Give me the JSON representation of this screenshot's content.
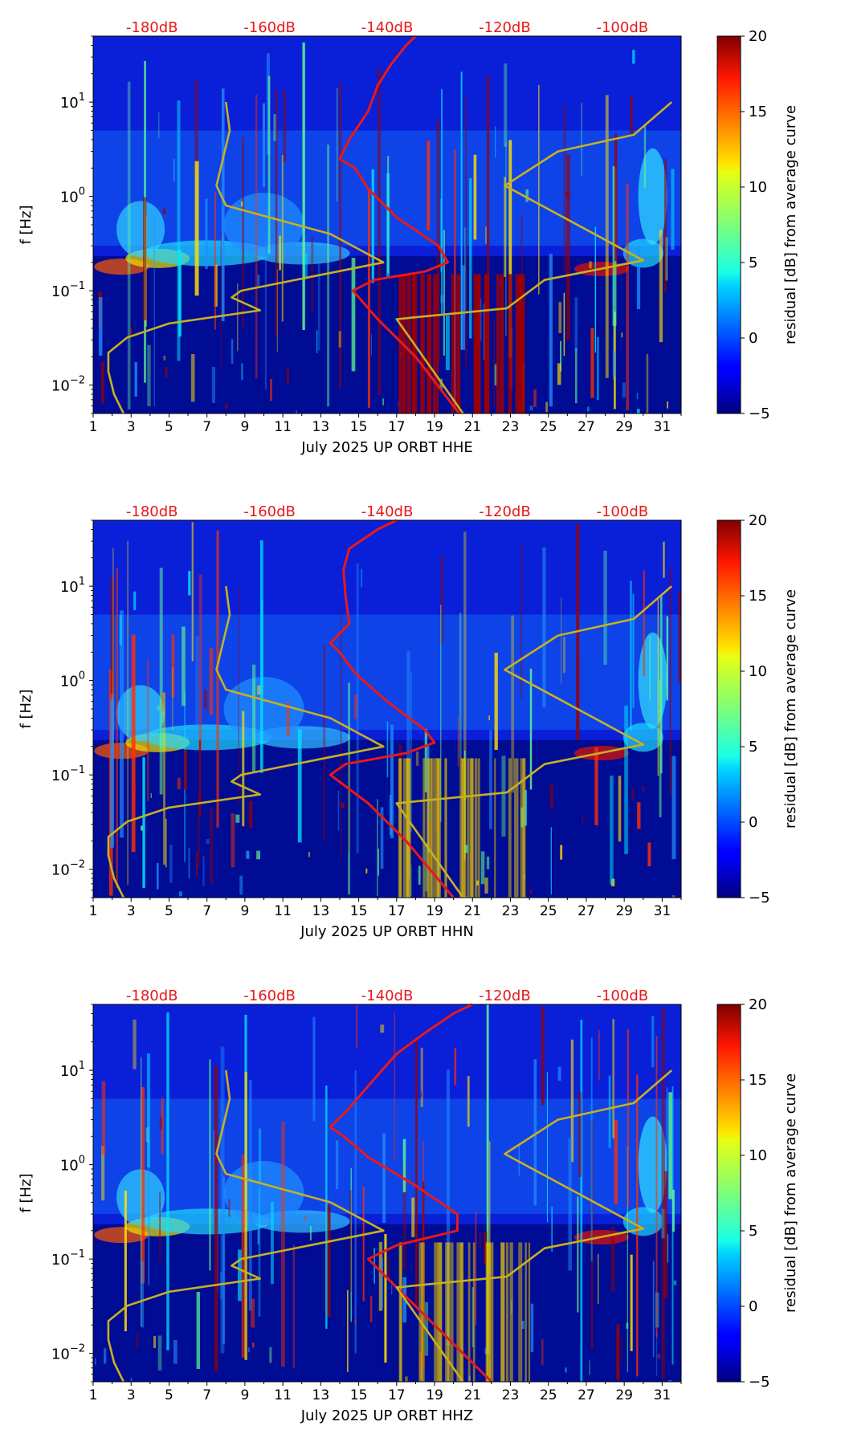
{
  "chart_data": [
    {
      "type": "heatmap",
      "xlabel": "July 2025 UP ORBT  HHE",
      "ylabel": "f [Hz]",
      "x_ticks": [
        "1",
        "3",
        "5",
        "7",
        "9",
        "11",
        "13",
        "15",
        "17",
        "19",
        "21",
        "23",
        "25",
        "27",
        "29",
        "31"
      ],
      "xlim": [
        1,
        32
      ],
      "ylim": [
        0.005,
        50
      ],
      "y_ticks": [
        {
          "value": 0.01,
          "base": "10",
          "exp": "−2"
        },
        {
          "value": 0.1,
          "base": "10",
          "exp": "−1"
        },
        {
          "value": 1,
          "base": "10",
          "exp": "0"
        },
        {
          "value": 10,
          "base": "10",
          "exp": "1"
        }
      ],
      "top_labels": [
        "-180dB",
        "-160dB",
        "-140dB",
        "-120dB",
        "-100dB"
      ],
      "colorbar": {
        "label": "residual [dB] from average curve",
        "range": [
          -5,
          20
        ],
        "ticks": [
          "−5",
          "0",
          "5",
          "10",
          "15",
          "20"
        ]
      },
      "colors": {
        "red_curve": "#e81919",
        "gold_curve": "#c8b020",
        "top_labels": "#e81919"
      },
      "series": [
        {
          "name": "average PSD (red)",
          "points": [
            [
              20.3,
              0.005
            ],
            [
              18,
              0.02
            ],
            [
              16,
              0.05
            ],
            [
              14.7,
              0.1
            ],
            [
              15.8,
              0.13
            ],
            [
              18.5,
              0.16
            ],
            [
              19.7,
              0.2
            ],
            [
              19.2,
              0.3
            ],
            [
              17,
              0.6
            ],
            [
              15.5,
              1.2
            ],
            [
              14.8,
              2
            ],
            [
              14,
              2.5
            ],
            [
              14.5,
              4
            ],
            [
              15.5,
              8
            ],
            [
              16,
              15
            ],
            [
              16.7,
              25
            ],
            [
              17.5,
              40
            ],
            [
              18,
              50
            ]
          ]
        },
        {
          "name": "noise model (gold)",
          "points": [
            [
              2.6,
              0.005
            ],
            [
              2.1,
              0.008
            ],
            [
              1.8,
              0.014
            ],
            [
              1.8,
              0.022
            ],
            [
              2.8,
              0.032
            ],
            [
              5,
              0.045
            ],
            [
              9.8,
              0.062
            ],
            [
              8.3,
              0.085
            ],
            [
              8.8,
              0.1
            ],
            [
              16.3,
              0.2
            ],
            [
              13.5,
              0.4
            ],
            [
              8,
              0.8
            ],
            [
              7.5,
              1.3
            ],
            [
              8.2,
              5
            ],
            [
              8,
              10
            ]
          ]
        },
        {
          "name": "noise model 2 (gold)",
          "points": [
            [
              20.5,
              0.005
            ],
            [
              17,
              0.05
            ],
            [
              22.8,
              0.065
            ],
            [
              24.8,
              0.13
            ],
            [
              30,
              0.21
            ],
            [
              22.7,
              1.3
            ],
            [
              25.5,
              3
            ],
            [
              29.5,
              4.5
            ],
            [
              31.5,
              10
            ]
          ]
        }
      ]
    },
    {
      "type": "heatmap",
      "xlabel": "July 2025 UP ORBT  HHN",
      "ylabel": "f [Hz]",
      "x_ticks": [
        "1",
        "3",
        "5",
        "7",
        "9",
        "11",
        "13",
        "15",
        "17",
        "19",
        "21",
        "23",
        "25",
        "27",
        "29",
        "31"
      ],
      "xlim": [
        1,
        32
      ],
      "ylim": [
        0.005,
        50
      ],
      "y_ticks": [
        {
          "value": 0.01,
          "base": "10",
          "exp": "−2"
        },
        {
          "value": 0.1,
          "base": "10",
          "exp": "−1"
        },
        {
          "value": 1,
          "base": "10",
          "exp": "0"
        },
        {
          "value": 10,
          "base": "10",
          "exp": "1"
        }
      ],
      "top_labels": [
        "-180dB",
        "-160dB",
        "-140dB",
        "-120dB",
        "-100dB"
      ],
      "colorbar": {
        "label": "residual [dB] from average curve",
        "range": [
          -5,
          20
        ],
        "ticks": [
          "−5",
          "0",
          "5",
          "10",
          "15",
          "20"
        ]
      },
      "colors": {
        "red_curve": "#e81919",
        "gold_curve": "#c8b020",
        "top_labels": "#e81919"
      },
      "series": [
        {
          "name": "average PSD (red)",
          "points": [
            [
              20,
              0.005
            ],
            [
              17.5,
              0.02
            ],
            [
              15.5,
              0.05
            ],
            [
              13.5,
              0.1
            ],
            [
              14.3,
              0.13
            ],
            [
              17.5,
              0.17
            ],
            [
              19,
              0.22
            ],
            [
              18.5,
              0.3
            ],
            [
              16.5,
              0.6
            ],
            [
              14.8,
              1.2
            ],
            [
              14,
              2
            ],
            [
              13.5,
              2.5
            ],
            [
              14.5,
              4
            ],
            [
              14.3,
              8
            ],
            [
              14.2,
              15
            ],
            [
              14.5,
              25
            ],
            [
              16,
              40
            ],
            [
              17,
              50
            ]
          ]
        },
        {
          "name": "noise model (gold)",
          "points": [
            [
              2.6,
              0.005
            ],
            [
              2.1,
              0.008
            ],
            [
              1.8,
              0.014
            ],
            [
              1.8,
              0.022
            ],
            [
              2.8,
              0.032
            ],
            [
              5,
              0.045
            ],
            [
              9.8,
              0.062
            ],
            [
              8.3,
              0.085
            ],
            [
              8.8,
              0.1
            ],
            [
              16.3,
              0.2
            ],
            [
              13.5,
              0.4
            ],
            [
              8,
              0.8
            ],
            [
              7.5,
              1.3
            ],
            [
              8.2,
              5
            ],
            [
              8,
              10
            ]
          ]
        },
        {
          "name": "noise model 2 (gold)",
          "points": [
            [
              20.5,
              0.005
            ],
            [
              17,
              0.05
            ],
            [
              22.8,
              0.065
            ],
            [
              24.8,
              0.13
            ],
            [
              30,
              0.21
            ],
            [
              22.7,
              1.3
            ],
            [
              25.5,
              3
            ],
            [
              29.5,
              4.5
            ],
            [
              31.5,
              10
            ]
          ]
        }
      ]
    },
    {
      "type": "heatmap",
      "xlabel": "July 2025 UP ORBT  HHZ",
      "ylabel": "f [Hz]",
      "x_ticks": [
        "1",
        "3",
        "5",
        "7",
        "9",
        "11",
        "13",
        "15",
        "17",
        "19",
        "21",
        "23",
        "25",
        "27",
        "29",
        "31"
      ],
      "xlim": [
        1,
        32
      ],
      "ylim": [
        0.005,
        50
      ],
      "y_ticks": [
        {
          "value": 0.01,
          "base": "10",
          "exp": "−2"
        },
        {
          "value": 0.1,
          "base": "10",
          "exp": "−1"
        },
        {
          "value": 1,
          "base": "10",
          "exp": "0"
        },
        {
          "value": 10,
          "base": "10",
          "exp": "1"
        }
      ],
      "top_labels": [
        "-180dB",
        "-160dB",
        "-140dB",
        "-120dB",
        "-100dB"
      ],
      "colorbar": {
        "label": "residual [dB] from average curve",
        "range": [
          -5,
          20
        ],
        "ticks": [
          "−5",
          "0",
          "5",
          "10",
          "15",
          "20"
        ]
      },
      "colors": {
        "red_curve": "#e81919",
        "gold_curve": "#c8b020",
        "top_labels": "#e81919"
      },
      "series": [
        {
          "name": "average PSD (red)",
          "points": [
            [
              22,
              0.005
            ],
            [
              19,
              0.02
            ],
            [
              17,
              0.05
            ],
            [
              15.5,
              0.1
            ],
            [
              17,
              0.14
            ],
            [
              20.2,
              0.2
            ],
            [
              20.2,
              0.3
            ],
            [
              18,
              0.6
            ],
            [
              15.5,
              1.2
            ],
            [
              14.2,
              2
            ],
            [
              13.5,
              2.5
            ],
            [
              14.5,
              4
            ],
            [
              15.8,
              8
            ],
            [
              17,
              15
            ],
            [
              18.5,
              25
            ],
            [
              20,
              40
            ],
            [
              21,
              50
            ]
          ]
        },
        {
          "name": "noise model (gold)",
          "points": [
            [
              2.6,
              0.005
            ],
            [
              2.1,
              0.008
            ],
            [
              1.8,
              0.014
            ],
            [
              1.8,
              0.022
            ],
            [
              2.8,
              0.032
            ],
            [
              5,
              0.045
            ],
            [
              9.8,
              0.062
            ],
            [
              8.3,
              0.085
            ],
            [
              8.8,
              0.1
            ],
            [
              16.3,
              0.2
            ],
            [
              13.5,
              0.4
            ],
            [
              8,
              0.8
            ],
            [
              7.5,
              1.3
            ],
            [
              8.2,
              5
            ],
            [
              8,
              10
            ]
          ]
        },
        {
          "name": "noise model 2 (gold)",
          "points": [
            [
              20.5,
              0.005
            ],
            [
              17,
              0.05
            ],
            [
              22.8,
              0.065
            ],
            [
              24.8,
              0.13
            ],
            [
              30,
              0.21
            ],
            [
              22.7,
              1.3
            ],
            [
              25.5,
              3
            ],
            [
              29.5,
              4.5
            ],
            [
              31.5,
              10
            ]
          ]
        }
      ]
    }
  ]
}
